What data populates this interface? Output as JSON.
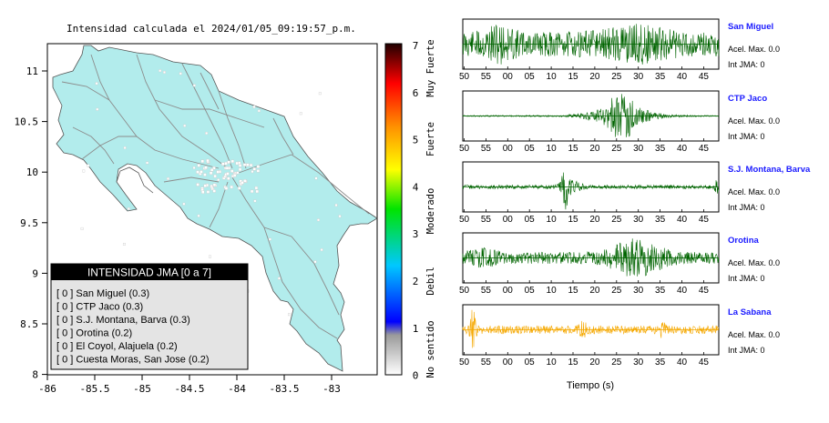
{
  "map": {
    "title": "Intensidad calculada el 2024/01/05_09:19:57_p.m.",
    "x_ticks": [
      "-86",
      "-85.5",
      "-85",
      "-84.5",
      "-84",
      "-83.5",
      "-83"
    ],
    "y_ticks": [
      "11",
      "10.5",
      "10",
      "9.5",
      "9",
      "8.5",
      "8"
    ],
    "land_color": "#b2ecec",
    "legend": {
      "header": "INTENSIDAD JMA [0 a 7]",
      "items": [
        "[ 0 ]  San Miguel (0.3)",
        "[ 0 ]  CTP Jaco (0.3)",
        "[ 0 ]  S.J. Montana, Barva (0.3)",
        "[ 0 ]  Orotina (0.2)",
        "[ 0 ]  El Coyol, Alajuela (0.2)",
        "[ 0 ]  Cuesta Moras, San Jose (0.2)"
      ]
    }
  },
  "colorbar": {
    "ticks": [
      "7",
      "6",
      "5",
      "4",
      "3",
      "2",
      "1",
      "0"
    ],
    "labels": [
      "Muy Fuerte",
      "Fuerte",
      "Moderado",
      "Debil",
      "No sentido"
    ]
  },
  "seismograms": {
    "x_ticks": [
      "50",
      "55",
      "00",
      "05",
      "10",
      "15",
      "20",
      "25",
      "30",
      "35",
      "40",
      "45"
    ],
    "xlabel": "Tiempo (s)",
    "stations": [
      {
        "name": "San Miguel",
        "accel": "Acel. Max. 0.0",
        "int": "Int JMA: 0",
        "color": "#006400"
      },
      {
        "name": "CTP Jaco",
        "accel": "Acel. Max. 0.0",
        "int": "Int JMA: 0",
        "color": "#006400"
      },
      {
        "name": "S.J. Montana, Barva",
        "accel": "Acel. Max. 0.0",
        "int": "Int JMA: 0",
        "color": "#006400"
      },
      {
        "name": "Orotina",
        "accel": "Acel. Max. 0.0",
        "int": "Int JMA: 0",
        "color": "#006400"
      },
      {
        "name": "La Sabana",
        "accel": "Acel. Max. 0.0",
        "int": "Int JMA: 0",
        "color": "#f5a800"
      }
    ]
  }
}
